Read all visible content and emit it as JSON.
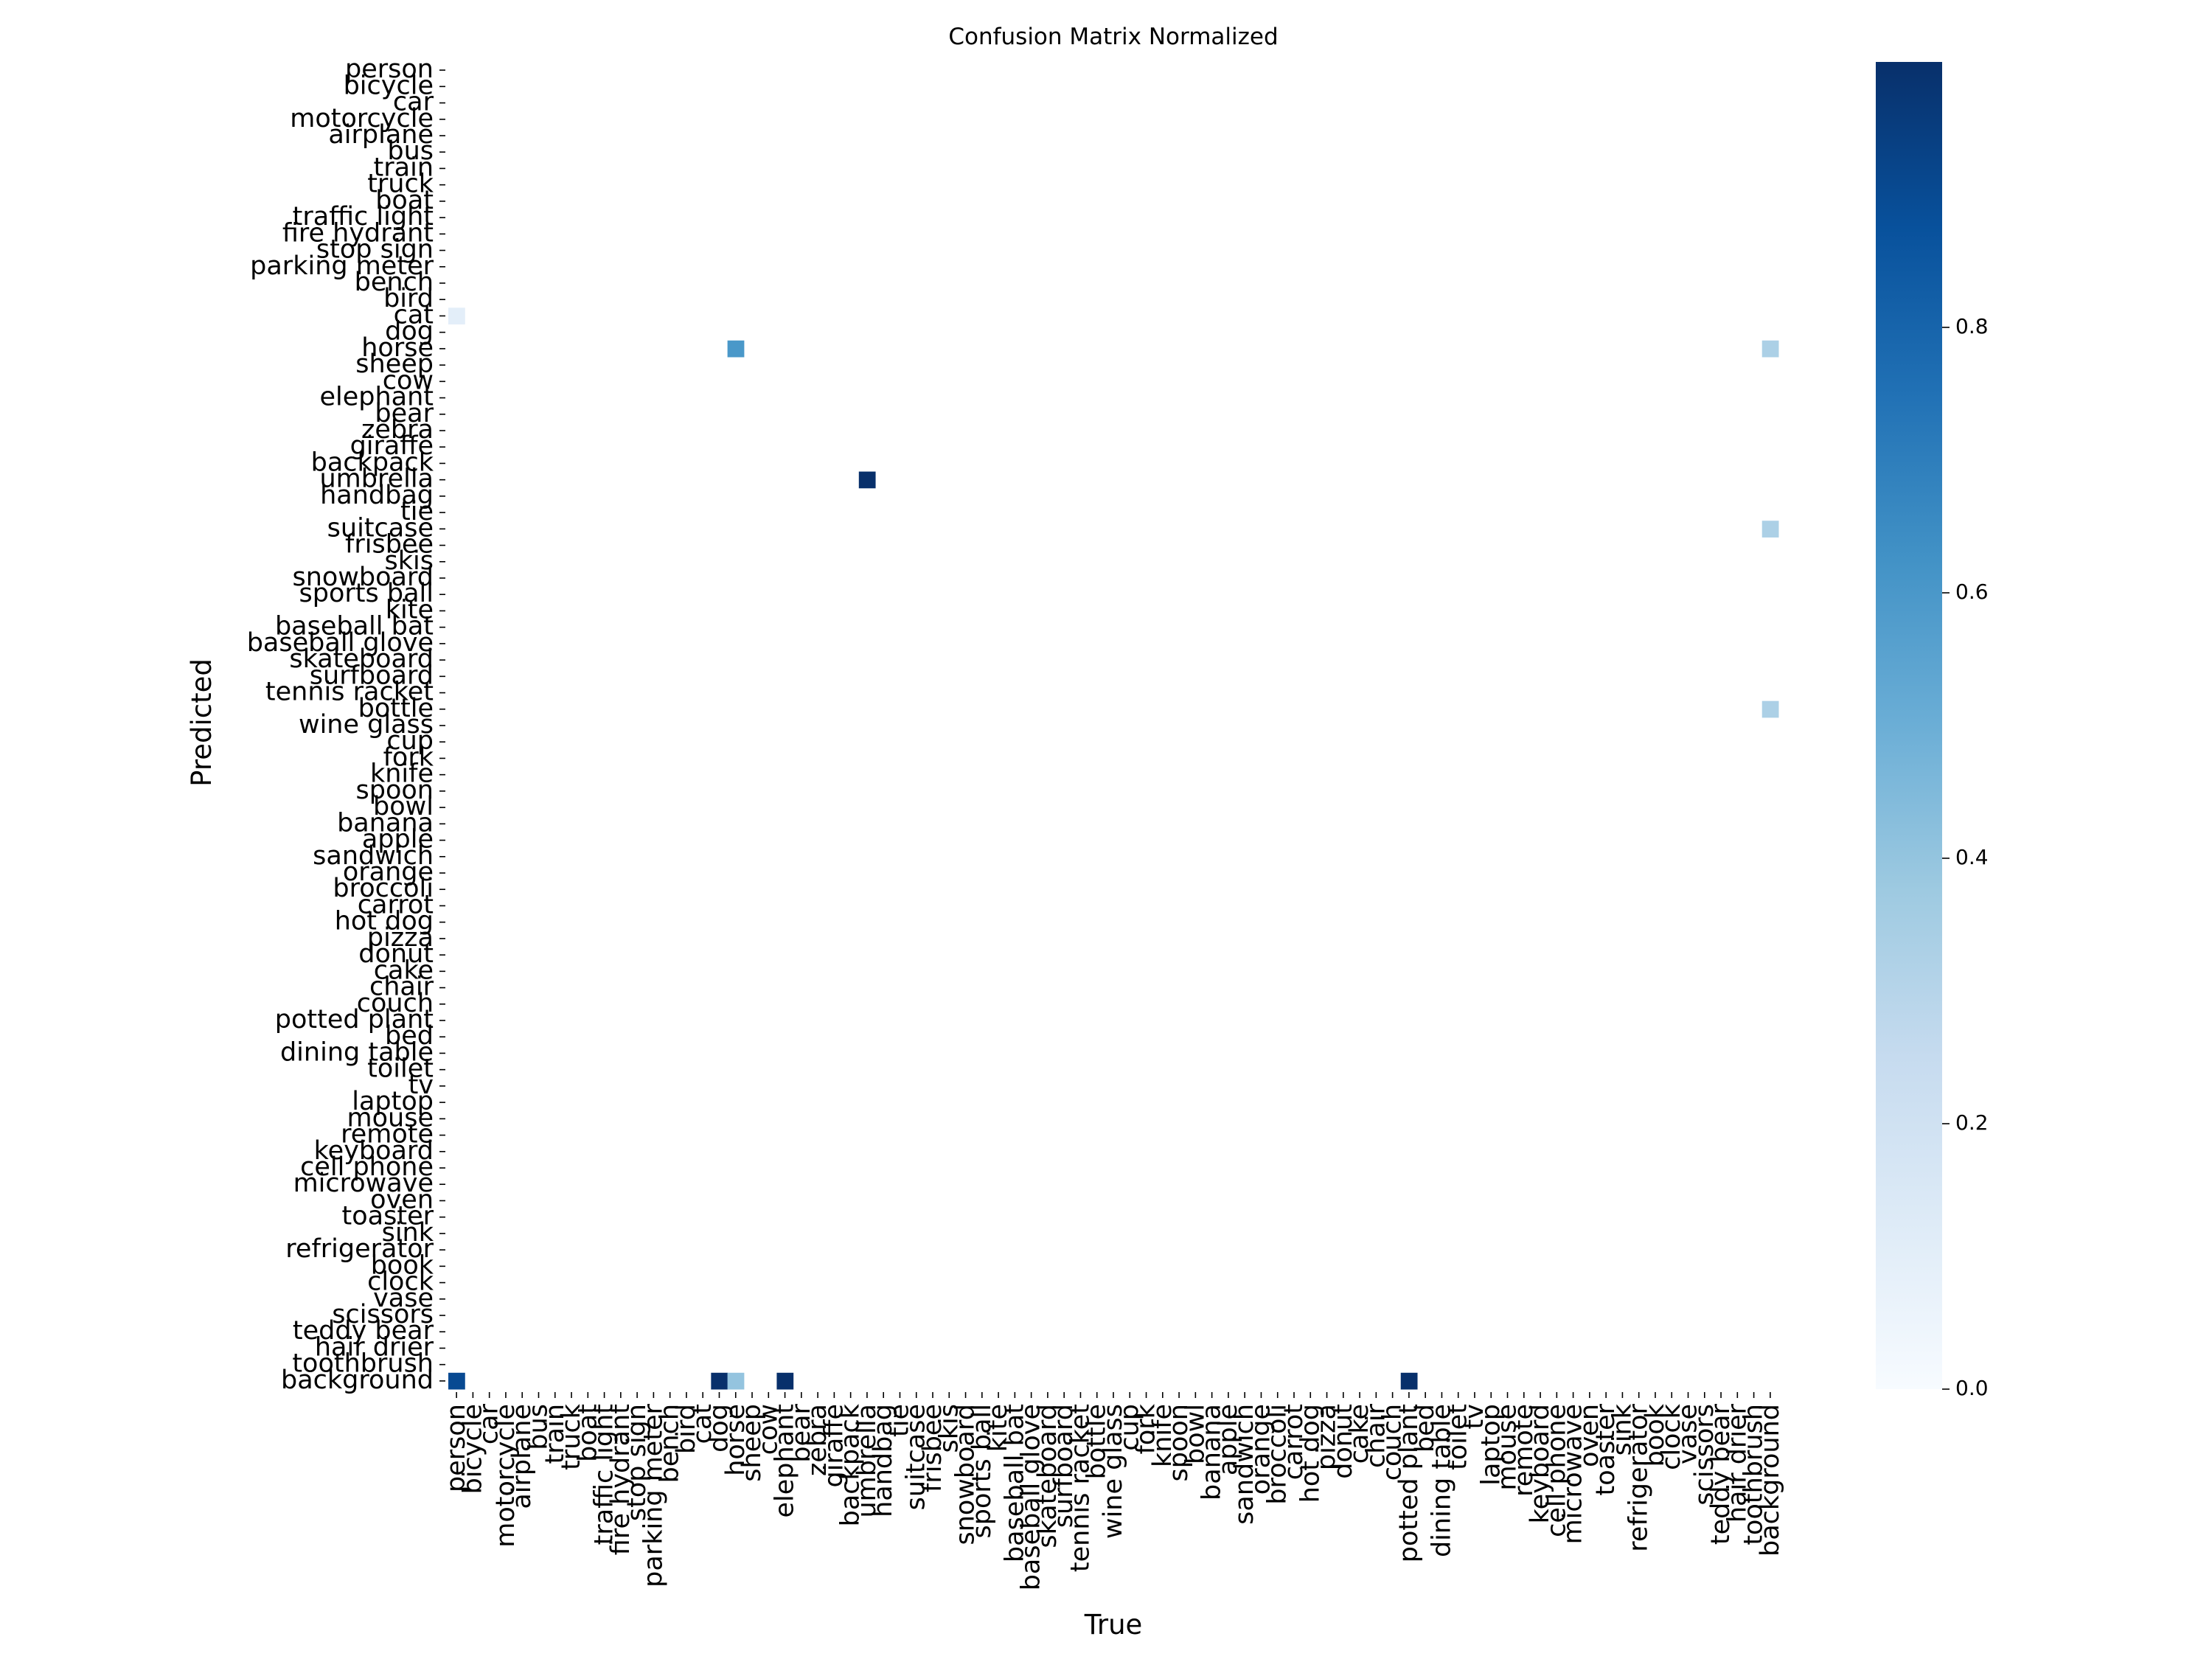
{
  "chart_data": {
    "type": "heatmap",
    "title": "Confusion Matrix Normalized",
    "xlabel": "True",
    "ylabel": "Predicted",
    "colormap": "Blues",
    "colorbar": {
      "range": [
        0,
        1
      ],
      "ticks": [
        "0.0",
        "0.2",
        "0.4",
        "0.6",
        "0.8"
      ]
    },
    "categories": [
      "person",
      "bicycle",
      "car",
      "motorcycle",
      "airplane",
      "bus",
      "train",
      "truck",
      "boat",
      "traffic light",
      "fire hydrant",
      "stop sign",
      "parking meter",
      "bench",
      "bird",
      "cat",
      "dog",
      "horse",
      "sheep",
      "cow",
      "elephant",
      "bear",
      "zebra",
      "giraffe",
      "backpack",
      "umbrella",
      "handbag",
      "tie",
      "suitcase",
      "frisbee",
      "skis",
      "snowboard",
      "sports ball",
      "kite",
      "baseball bat",
      "baseball glove",
      "skateboard",
      "surfboard",
      "tennis racket",
      "bottle",
      "wine glass",
      "cup",
      "fork",
      "knife",
      "spoon",
      "bowl",
      "banana",
      "apple",
      "sandwich",
      "orange",
      "broccoli",
      "carrot",
      "hot dog",
      "pizza",
      "donut",
      "cake",
      "chair",
      "couch",
      "potted plant",
      "bed",
      "dining table",
      "toilet",
      "tv",
      "laptop",
      "mouse",
      "remote",
      "keyboard",
      "cell phone",
      "microwave",
      "oven",
      "toaster",
      "sink",
      "refrigerator",
      "book",
      "clock",
      "vase",
      "scissors",
      "teddy bear",
      "hair drier",
      "toothbrush",
      "background"
    ],
    "cells": [
      {
        "true": "person",
        "predicted": "cat",
        "value": 0.1
      },
      {
        "true": "person",
        "predicted": "background",
        "value": 0.9
      },
      {
        "true": "dog",
        "predicted": "background",
        "value": 1.0
      },
      {
        "true": "horse",
        "predicted": "horse",
        "value": 0.6
      },
      {
        "true": "horse",
        "predicted": "background",
        "value": 0.4
      },
      {
        "true": "elephant",
        "predicted": "background",
        "value": 1.0
      },
      {
        "true": "umbrella",
        "predicted": "umbrella",
        "value": 1.0
      },
      {
        "true": "potted plant",
        "predicted": "background",
        "value": 1.0
      },
      {
        "true": "background",
        "predicted": "horse",
        "value": 0.33
      },
      {
        "true": "background",
        "predicted": "suitcase",
        "value": 0.33
      },
      {
        "true": "background",
        "predicted": "bottle",
        "value": 0.33
      }
    ]
  }
}
